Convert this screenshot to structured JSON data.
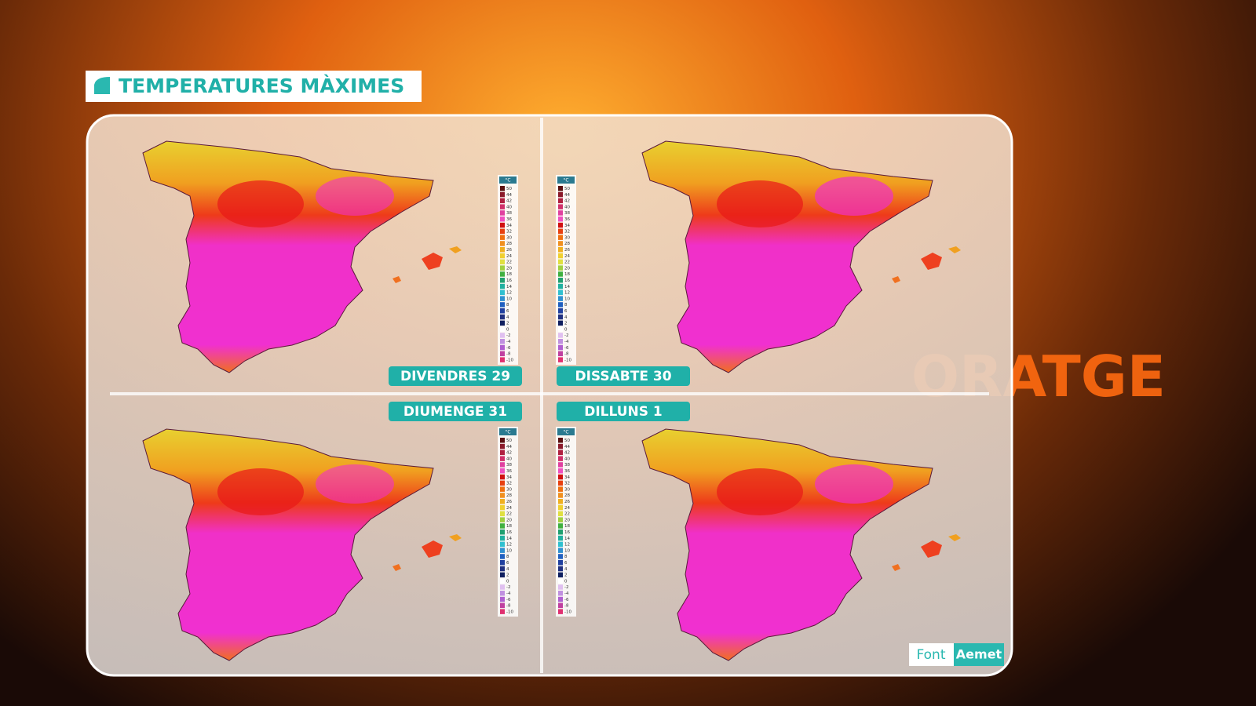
{
  "header": {
    "title": "TEMPERATURES MÀXIMES"
  },
  "logo_text": "ORATGE",
  "legend": {
    "unit": "°C",
    "entries": [
      {
        "value": 50,
        "color": "#5a1010"
      },
      {
        "value": 44,
        "color": "#8b1a2a"
      },
      {
        "value": 42,
        "color": "#b02040"
      },
      {
        "value": 40,
        "color": "#d0306a"
      },
      {
        "value": 38,
        "color": "#e040a0"
      },
      {
        "value": 36,
        "color": "#f050c0"
      },
      {
        "value": 34,
        "color": "#d01010"
      },
      {
        "value": 32,
        "color": "#e84010"
      },
      {
        "value": 30,
        "color": "#f07010"
      },
      {
        "value": 28,
        "color": "#f09020"
      },
      {
        "value": 26,
        "color": "#f0b020"
      },
      {
        "value": 24,
        "color": "#f0d030"
      },
      {
        "value": 22,
        "color": "#e0e040"
      },
      {
        "value": 20,
        "color": "#a0d040"
      },
      {
        "value": 18,
        "color": "#40b040"
      },
      {
        "value": 16,
        "color": "#20a070"
      },
      {
        "value": 14,
        "color": "#20b0a0"
      },
      {
        "value": 12,
        "color": "#30c0d0"
      },
      {
        "value": 10,
        "color": "#3090d0"
      },
      {
        "value": 8,
        "color": "#2060c0"
      },
      {
        "value": 6,
        "color": "#2040a0"
      },
      {
        "value": 4,
        "color": "#203080"
      },
      {
        "value": 2,
        "color": "#102060"
      },
      {
        "value": 0,
        "color": "#ffffff"
      },
      {
        "value": -2,
        "color": "#e0c0f0"
      },
      {
        "value": -4,
        "color": "#c090e0"
      },
      {
        "value": -6,
        "color": "#b060d0"
      },
      {
        "value": -8,
        "color": "#c040a0"
      },
      {
        "value": -10,
        "color": "#e03070"
      }
    ]
  },
  "panels": [
    {
      "label": "DIVENDRES 29"
    },
    {
      "label": "DISSABTE 30"
    },
    {
      "label": "DIUMENGE 31"
    },
    {
      "label": "DILLUNS 1"
    }
  ],
  "source": {
    "label": "Font",
    "name": "Aemet"
  }
}
